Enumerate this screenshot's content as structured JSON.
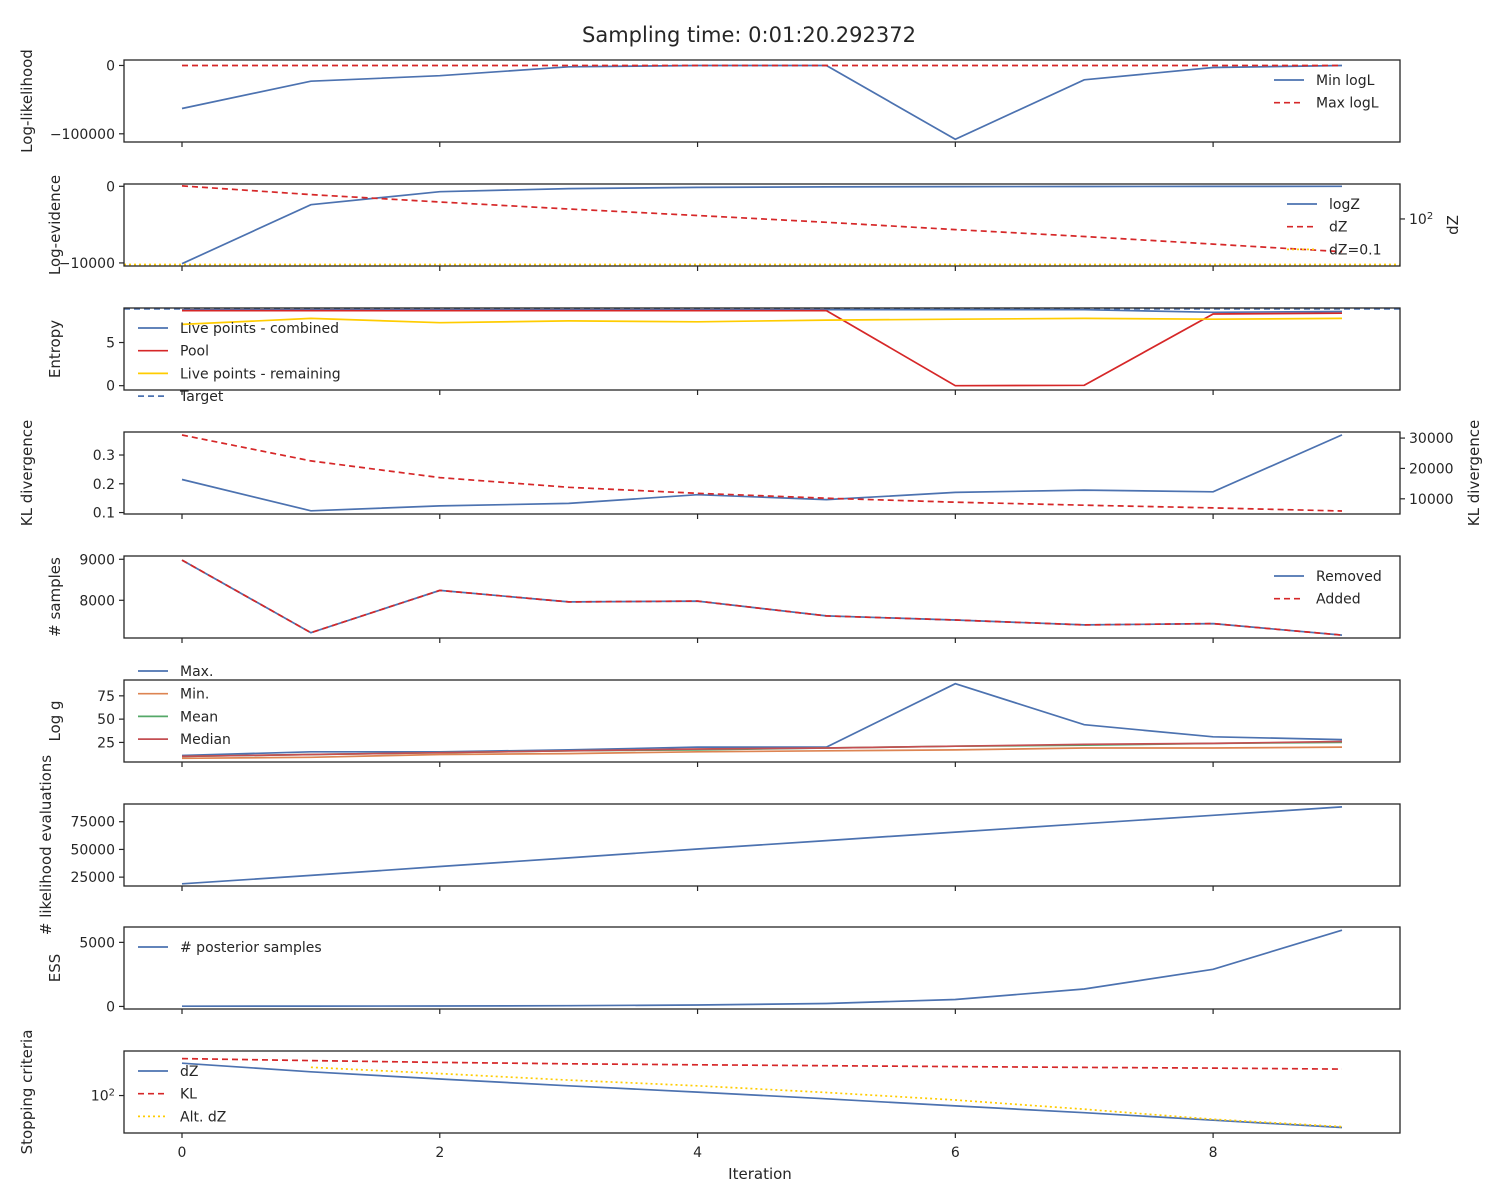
{
  "title": "Sampling time: 0:01:20.292372",
  "xlabel": "Iteration",
  "x_ticks": [
    0,
    2,
    4,
    6,
    8
  ],
  "colors": {
    "blue": "#4c72b0",
    "red": "#d62728",
    "yellow": "#ffcc00",
    "orange": "#dd8452",
    "green": "#55a868",
    "crimson": "#c44e52",
    "ink": "#262626"
  },
  "chart_data": [
    {
      "type": "line",
      "ylabel": "Log-likelihood",
      "ylim": [
        -112000,
        8000
      ],
      "yticks": [
        {
          "v": 0,
          "label": "0"
        },
        {
          "v": -100000,
          "label": "−100000"
        }
      ],
      "legend": "right",
      "series": [
        {
          "name": "Min logL",
          "color": "#4c72b0",
          "dash": "",
          "y": [
            -63000,
            -23000,
            -15000,
            -2000,
            0,
            0,
            -108000,
            -21000,
            -3000,
            0
          ]
        },
        {
          "name": "Max logL",
          "color": "#d62728",
          "dash": "6,4",
          "y": [
            0,
            0,
            0,
            0,
            0,
            0,
            0,
            0,
            0,
            0
          ]
        }
      ]
    },
    {
      "type": "line",
      "ylabel": "Log-evidence",
      "ylim": [
        -10400,
        300
      ],
      "yticks": [
        {
          "v": 0,
          "label": "0"
        },
        {
          "v": -10000,
          "label": "−10000"
        }
      ],
      "y2label": "dZ",
      "y2scale": "log",
      "y2lim": [
        0.08,
        20000
      ],
      "y2ticks": [
        {
          "v": 100,
          "label": "10",
          "sup": "2"
        }
      ],
      "legend": "right",
      "series": [
        {
          "name": "logZ",
          "color": "#4c72b0",
          "dash": "",
          "axis": "left",
          "y": [
            -10100,
            -2400,
            -700,
            -300,
            -150,
            -80,
            -40,
            -20,
            -10,
            -5
          ]
        },
        {
          "name": "dZ",
          "color": "#d62728",
          "dash": "6,4",
          "axis": "right",
          "y": [
            15000,
            4000,
            1300,
            450,
            170,
            60,
            20,
            7,
            2.2,
            0.7
          ]
        },
        {
          "name": "dZ=0.1",
          "color": "#ffcc00",
          "dash": "2,3",
          "axis": "right",
          "hline": 0.1
        }
      ]
    },
    {
      "type": "line",
      "ylabel": "Entropy",
      "ylim": [
        -0.5,
        9.0
      ],
      "yticks": [
        {
          "v": 0,
          "label": "0"
        },
        {
          "v": 5,
          "label": "5"
        }
      ],
      "legend": "left",
      "series": [
        {
          "name": "Live points - combined",
          "color": "#4c72b0",
          "dash": "",
          "y": [
            8.78,
            8.8,
            8.8,
            8.8,
            8.8,
            8.8,
            8.8,
            8.8,
            8.5,
            8.6
          ]
        },
        {
          "name": "Pool",
          "color": "#d62728",
          "dash": "",
          "y": [
            8.7,
            8.7,
            8.7,
            8.7,
            8.7,
            8.7,
            0.0,
            0.05,
            8.3,
            8.4
          ]
        },
        {
          "name": "Live points - remaining",
          "color": "#ffcc00",
          "dash": "",
          "y": [
            7.1,
            7.8,
            7.3,
            7.5,
            7.4,
            7.6,
            7.7,
            7.8,
            7.7,
            7.8
          ]
        },
        {
          "name": "Target",
          "color": "#4c72b0",
          "dash": "6,4",
          "hline": 8.9
        }
      ]
    },
    {
      "type": "line",
      "ylabel": "KL divergence",
      "ylim": [
        0.095,
        0.38
      ],
      "yticks": [
        {
          "v": 0.1,
          "label": "0.1"
        },
        {
          "v": 0.2,
          "label": "0.2"
        },
        {
          "v": 0.3,
          "label": "0.3"
        }
      ],
      "y2label": "KL divergence",
      "y2lim": [
        5000,
        32000
      ],
      "y2ticks": [
        {
          "v": 10000,
          "label": "10000"
        },
        {
          "v": 20000,
          "label": "20000"
        },
        {
          "v": 30000,
          "label": "30000"
        }
      ],
      "series": [
        {
          "name": "",
          "color": "#4c72b0",
          "dash": "",
          "axis": "left",
          "y": [
            0.215,
            0.106,
            0.123,
            0.132,
            0.162,
            0.145,
            0.17,
            0.178,
            0.172,
            0.37
          ]
        },
        {
          "name": "",
          "color": "#d62728",
          "dash": "6,4",
          "axis": "right",
          "y": [
            31000,
            22500,
            17000,
            13800,
            11800,
            10200,
            8900,
            7900,
            7000,
            6000
          ]
        }
      ]
    },
    {
      "type": "line",
      "ylabel": "# samples",
      "ylim": [
        7080,
        9080
      ],
      "yticks": [
        {
          "v": 8000,
          "label": "8000"
        },
        {
          "v": 9000,
          "label": "9000"
        }
      ],
      "legend": "right",
      "series": [
        {
          "name": "Removed",
          "color": "#4c72b0",
          "dash": "",
          "y": [
            8980,
            7210,
            8240,
            7960,
            7980,
            7620,
            7520,
            7400,
            7430,
            7150
          ]
        },
        {
          "name": "Added",
          "color": "#d62728",
          "dash": "6,4",
          "y": [
            8980,
            7210,
            8240,
            7960,
            7980,
            7620,
            7520,
            7400,
            7430,
            7150
          ]
        }
      ]
    },
    {
      "type": "line",
      "ylabel": "Log g",
      "ylim": [
        4,
        92
      ],
      "yticks": [
        {
          "v": 25,
          "label": "25"
        },
        {
          "v": 50,
          "label": "50"
        },
        {
          "v": 75,
          "label": "75"
        }
      ],
      "legend": "outside-top-left",
      "series": [
        {
          "name": "Max.",
          "color": "#4c72b0",
          "dash": "",
          "y": [
            11,
            15,
            15,
            17,
            20,
            20,
            88,
            44,
            31,
            28
          ]
        },
        {
          "name": "Min.",
          "color": "#dd8452",
          "dash": "",
          "y": [
            8,
            9,
            12,
            13,
            15,
            16,
            17,
            19,
            19,
            20
          ]
        },
        {
          "name": "Mean",
          "color": "#55a868",
          "dash": "",
          "y": [
            10,
            12,
            14,
            16,
            17,
            19,
            21,
            22,
            24,
            25
          ]
        },
        {
          "name": "Median",
          "color": "#c44e52",
          "dash": "",
          "y": [
            10,
            12,
            14,
            16,
            18,
            19,
            21,
            23,
            24,
            26
          ]
        }
      ]
    },
    {
      "type": "line",
      "ylabel": "# likelihood evaluations",
      "ylim": [
        17000,
        91000
      ],
      "yticks": [
        {
          "v": 25000,
          "label": "25000"
        },
        {
          "v": 50000,
          "label": "50000"
        },
        {
          "v": 75000,
          "label": "75000"
        }
      ],
      "series": [
        {
          "name": "",
          "color": "#4c72b0",
          "dash": "",
          "y": [
            19000,
            26600,
            34600,
            42400,
            50400,
            58000,
            65600,
            73200,
            80800,
            88400
          ]
        }
      ]
    },
    {
      "type": "line",
      "ylabel": "ESS",
      "ylim": [
        -200,
        6200
      ],
      "yticks": [
        {
          "v": 0,
          "label": "0"
        },
        {
          "v": 5000,
          "label": "5000"
        }
      ],
      "legend": "left",
      "series": [
        {
          "name": "# posterior samples",
          "color": "#4c72b0",
          "dash": "",
          "y": [
            20,
            25,
            35,
            60,
            110,
            230,
            540,
            1360,
            2900,
            5950
          ]
        }
      ]
    },
    {
      "type": "line",
      "ylabel": "Stopping criteria",
      "yscale": "log",
      "ylim": [
        0.3,
        100000
      ],
      "yticks": [
        {
          "v": 100,
          "label": "10",
          "sup": "2"
        }
      ],
      "legend": "left",
      "series": [
        {
          "name": "dZ",
          "color": "#4c72b0",
          "dash": "",
          "y": [
            15000,
            4000,
            1300,
            450,
            170,
            60,
            20,
            7,
            2.2,
            0.7
          ]
        },
        {
          "name": "KL",
          "color": "#d62728",
          "dash": "6,4",
          "y": [
            31000,
            22500,
            17000,
            13800,
            11800,
            10200,
            8900,
            7900,
            7000,
            6000
          ]
        },
        {
          "name": "Alt. dZ",
          "color": "#ffcc00",
          "dash": "2,3",
          "y": [
            null,
            8000,
            3000,
            1100,
            450,
            160,
            50,
            12,
            2.5,
            0.8
          ]
        }
      ]
    }
  ]
}
